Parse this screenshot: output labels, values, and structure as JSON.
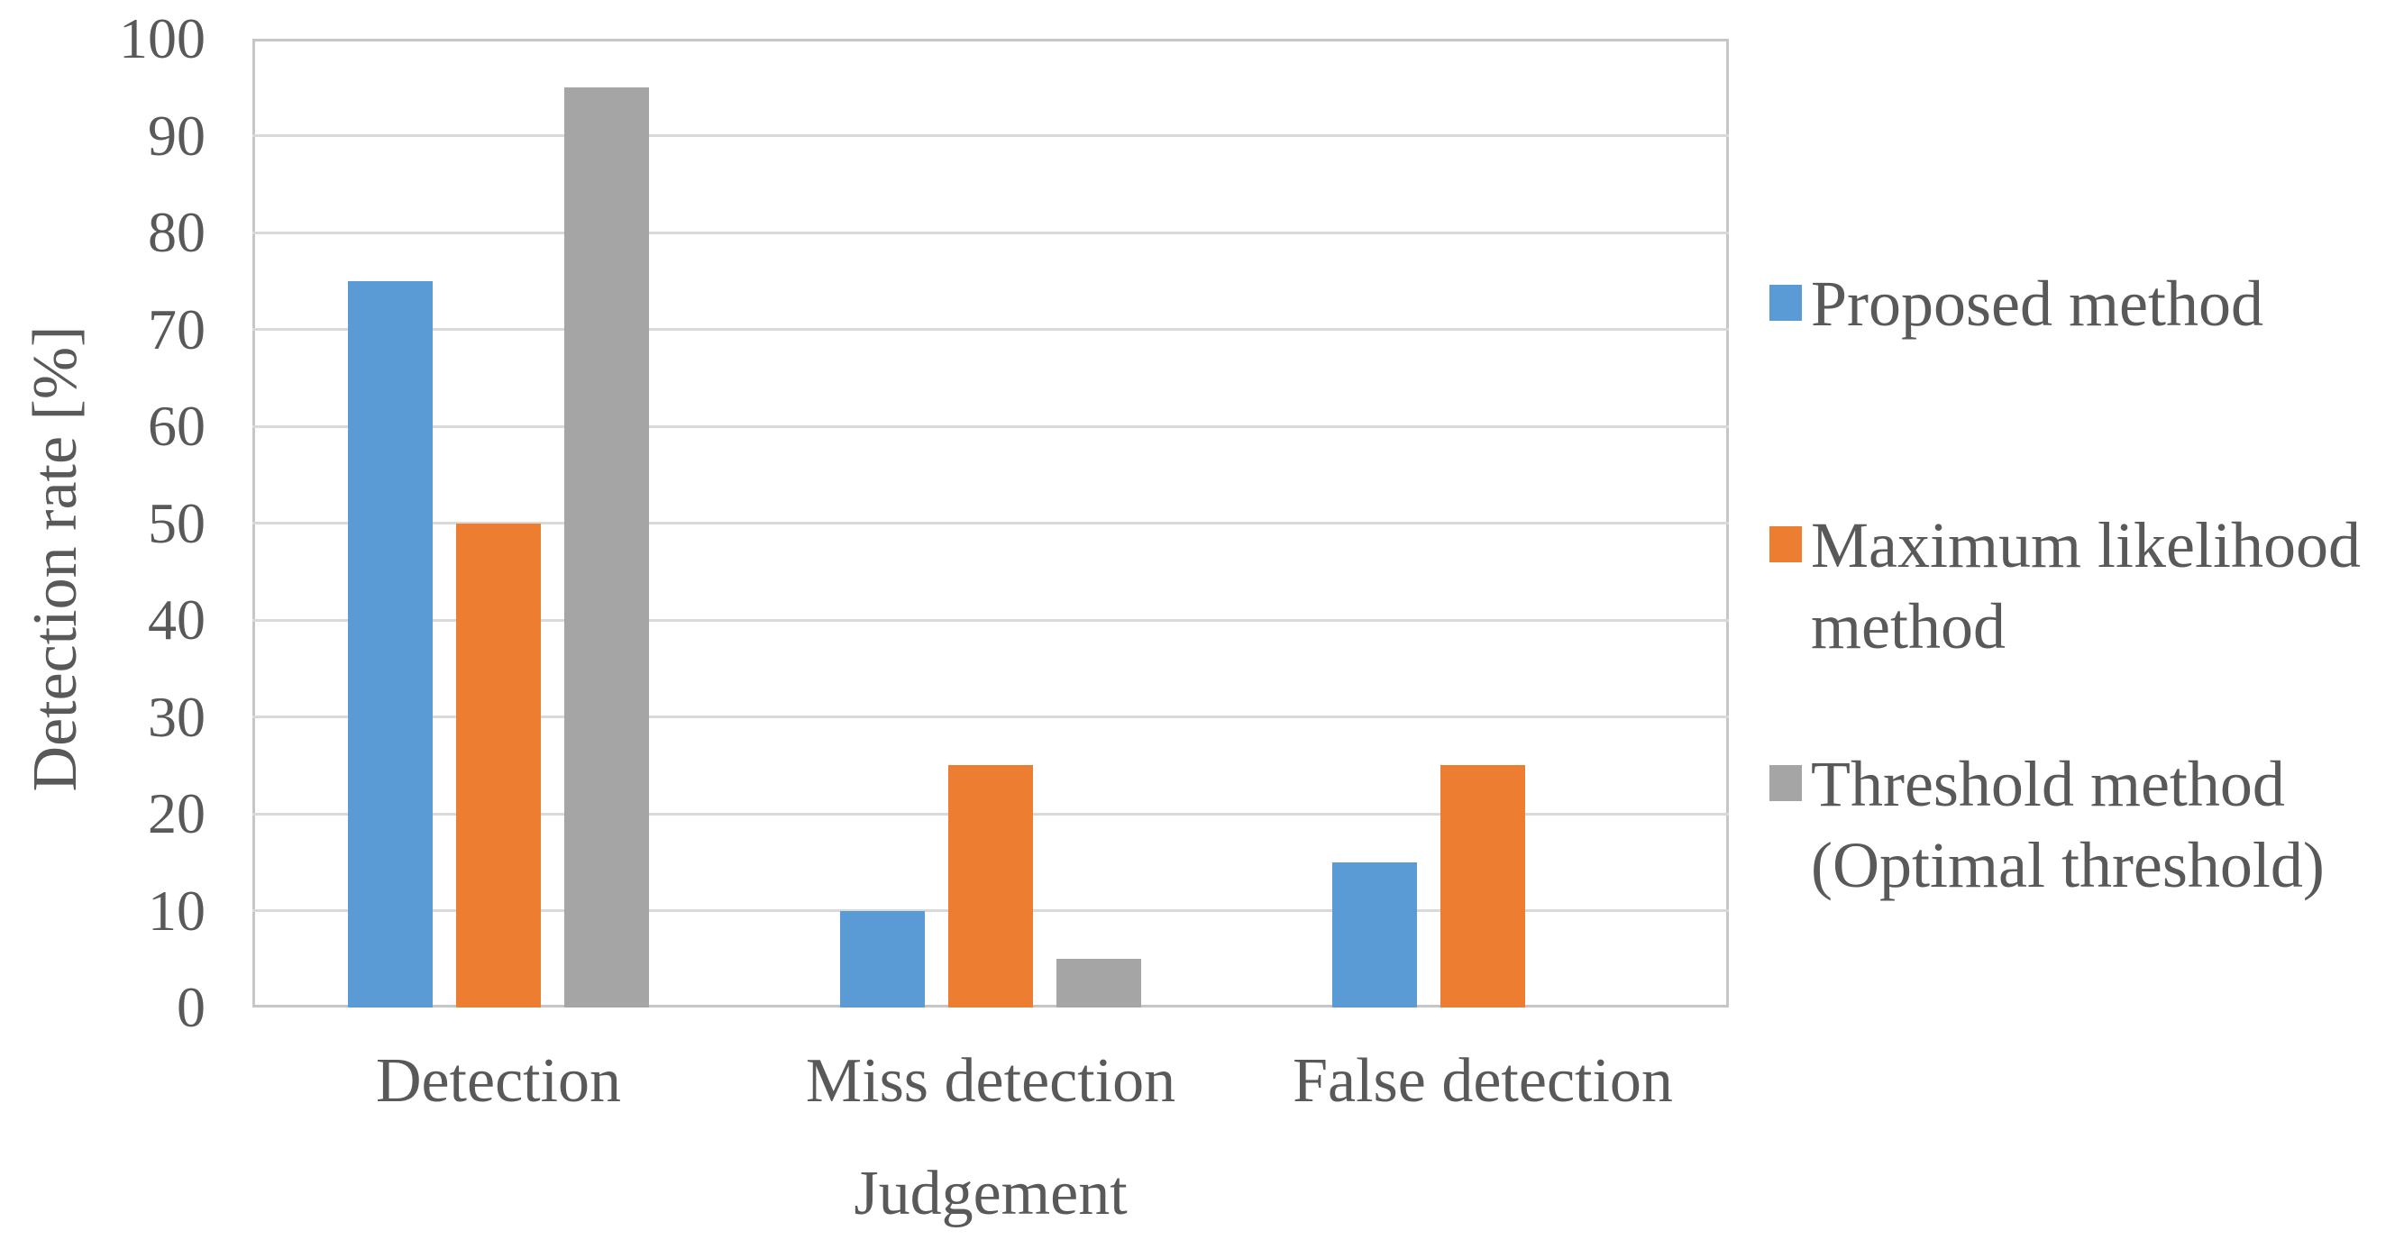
{
  "chart_data": {
    "type": "bar",
    "xlabel": "Judgement",
    "ylabel": "Detection rate [%]",
    "categories": [
      "Detection",
      "Miss detection",
      "False detection"
    ],
    "series": [
      {
        "name": "Proposed method",
        "color": "#5B9BD5",
        "values": [
          75,
          10,
          15
        ]
      },
      {
        "name": "Maximum likelihood method",
        "color": "#ED7D31",
        "values": [
          50,
          25,
          25
        ]
      },
      {
        "name": "Threshold method (Optimal threshold)",
        "color": "#A5A5A5",
        "values": [
          95,
          5,
          0
        ]
      }
    ],
    "legend_labels": [
      [
        "Proposed method"
      ],
      [
        "Maximum likelihood",
        "method"
      ],
      [
        "Threshold method",
        "(Optimal threshold)"
      ]
    ],
    "ylim": [
      0,
      100
    ],
    "ytick_step": 10,
    "grid": true,
    "legend_position": "right",
    "colors": {
      "text": "#595959",
      "gridline": "#D9D9D9",
      "plot_border": "#C6C6C6"
    }
  }
}
